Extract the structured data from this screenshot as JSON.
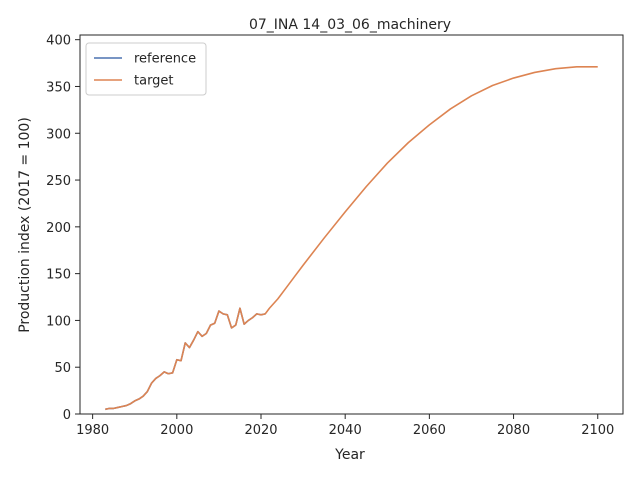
{
  "chart_data": {
    "type": "line",
    "title": "07_INA 14_03_06_machinery",
    "xlabel": "Year",
    "ylabel": "Production index (2017 = 100)",
    "xlim": [
      1977,
      2106
    ],
    "ylim": [
      0,
      405
    ],
    "xticks": [
      "1980",
      "2000",
      "2020",
      "2040",
      "2060",
      "2080",
      "2100"
    ],
    "yticks": [
      "0",
      "50",
      "100",
      "150",
      "200",
      "250",
      "300",
      "350",
      "400"
    ],
    "grid": false,
    "legend": "top-left",
    "series": [
      {
        "name": "reference",
        "color": "#4c72b0",
        "x": [
          1983,
          1984,
          1985,
          1986,
          1987,
          1988,
          1989,
          1990,
          1991,
          1992,
          1993,
          1994,
          1995,
          1996,
          1997,
          1998,
          1999,
          2000,
          2001,
          2002,
          2003,
          2004,
          2005,
          2006,
          2007,
          2008,
          2009,
          2010,
          2011,
          2012,
          2013,
          2014,
          2015,
          2016,
          2017,
          2018,
          2019,
          2020,
          2021
        ],
        "y": [
          5,
          6,
          6,
          7,
          8,
          9,
          11,
          14,
          16,
          19,
          24,
          33,
          38,
          41,
          45,
          43,
          44,
          58,
          57,
          76,
          71,
          79,
          88,
          83,
          86,
          95,
          97,
          110,
          107,
          106,
          92,
          95,
          113,
          96,
          100,
          103,
          107,
          106,
          107
        ]
      },
      {
        "name": "target",
        "color": "#dd8452",
        "x": [
          1983,
          1984,
          1985,
          1986,
          1987,
          1988,
          1989,
          1990,
          1991,
          1992,
          1993,
          1994,
          1995,
          1996,
          1997,
          1998,
          1999,
          2000,
          2001,
          2002,
          2003,
          2004,
          2005,
          2006,
          2007,
          2008,
          2009,
          2010,
          2011,
          2012,
          2013,
          2014,
          2015,
          2016,
          2017,
          2018,
          2019,
          2020,
          2021,
          2022,
          2024,
          2026,
          2028,
          2030,
          2035,
          2040,
          2045,
          2050,
          2055,
          2060,
          2065,
          2070,
          2075,
          2080,
          2085,
          2090,
          2095,
          2100
        ],
        "y": [
          5,
          6,
          6,
          7,
          8,
          9,
          11,
          14,
          16,
          19,
          24,
          33,
          38,
          41,
          45,
          43,
          44,
          58,
          57,
          76,
          71,
          79,
          88,
          83,
          86,
          95,
          97,
          110,
          107,
          106,
          92,
          95,
          113,
          96,
          100,
          103,
          107,
          106,
          107,
          113,
          123,
          135,
          147,
          159,
          188,
          216,
          243,
          268,
          290,
          309,
          326,
          340,
          351,
          359,
          365,
          369,
          371,
          371
        ]
      }
    ]
  }
}
